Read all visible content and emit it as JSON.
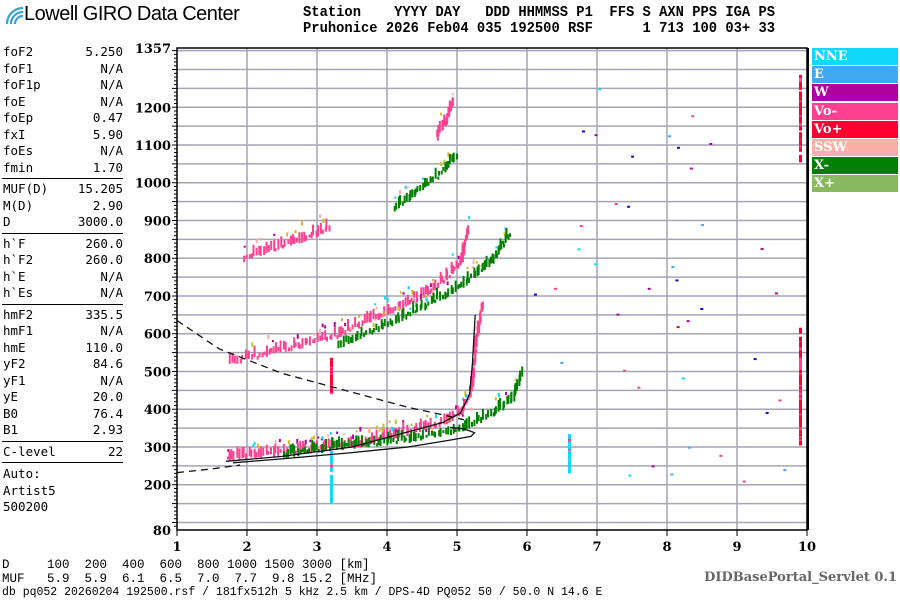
{
  "logo": {
    "text": "Lowell GIRO Data Center",
    "icon": "wifi-signal-icon"
  },
  "header": {
    "line1": "Station    YYYY DAY   DDD HHMMSS P1  FFS S AXN PPS IGA PS",
    "line2": "Pruhonice 2026 Feb04 035 192500 RSF      1 713 100 03+ 33"
  },
  "params": [
    {
      "k": "foF2",
      "v": "5.250"
    },
    {
      "k": "foF1",
      "v": "N/A"
    },
    {
      "k": "foF1p",
      "v": "N/A"
    },
    {
      "k": "foE",
      "v": "N/A"
    },
    {
      "k": "foEp",
      "v": "0.47"
    },
    {
      "k": "fxI",
      "v": "5.90"
    },
    {
      "k": "foEs",
      "v": "N/A"
    },
    {
      "k": "fmin",
      "v": "1.70"
    },
    {
      "k": "MUF(D)",
      "v": "15.205"
    },
    {
      "k": "M(D)",
      "v": "2.90"
    },
    {
      "k": "D",
      "v": "3000.0"
    },
    {
      "k": "h`F",
      "v": "260.0"
    },
    {
      "k": "h`F2",
      "v": "260.0"
    },
    {
      "k": "h`E",
      "v": "N/A"
    },
    {
      "k": "h`Es",
      "v": "N/A"
    },
    {
      "k": "hmF2",
      "v": "335.5"
    },
    {
      "k": "hmF1",
      "v": "N/A"
    },
    {
      "k": "hmE",
      "v": "110.0"
    },
    {
      "k": "yF2",
      "v": "84.6"
    },
    {
      "k": "yF1",
      "v": "N/A"
    },
    {
      "k": "yE",
      "v": "20.0"
    },
    {
      "k": "B0",
      "v": "76.4"
    },
    {
      "k": "B1",
      "v": "2.93"
    },
    {
      "k": "C-level",
      "v": "22"
    }
  ],
  "auto": [
    "Auto:",
    "Artist5",
    "500200"
  ],
  "legend": [
    {
      "label": "NNE",
      "color": "#10d8f8"
    },
    {
      "label": "E",
      "color": "#40a8f0"
    },
    {
      "label": "W",
      "color": "#b000a0"
    },
    {
      "label": "Vo-",
      "color": "#ff4090"
    },
    {
      "label": "Vo+",
      "color": "#ff0030"
    },
    {
      "label": "SSW",
      "color": "#f8b0a8"
    },
    {
      "label": "X-",
      "color": "#008000"
    },
    {
      "label": "X+",
      "color": "#88b860"
    }
  ],
  "footer": {
    "d_row": "D     100  200  400  600  800 1000 1500 3000 [km]",
    "muf_row": "MUF   5.9  5.9  6.1  6.5  7.0  7.7  9.8 15.2 [MHz]",
    "info": "db pq052 20260204 192500.rsf / 181fx512h 5 kHz 2.5 km / DPS-4D PQ052 50 / 50.0 N 14.6 E",
    "servlet": "DIDBasePortal_Servlet 0.1"
  },
  "chart_data": {
    "type": "scatter",
    "xlim": [
      1,
      10
    ],
    "ylim": [
      80,
      1357
    ],
    "xticks": [
      "1",
      "2",
      "3",
      "4",
      "5",
      "6",
      "7",
      "8",
      "9",
      "10"
    ],
    "yticks": [
      "1357",
      "1200",
      "1100",
      "1000",
      "900",
      "800",
      "700",
      "600",
      "500",
      "400",
      "300",
      "200",
      "80"
    ],
    "grid": true,
    "traces": [
      {
        "pol": "Vo-",
        "pts": [
          [
            1.7,
            270
          ],
          [
            2.5,
            285
          ],
          [
            3.5,
            305
          ],
          [
            4.3,
            340
          ],
          [
            4.8,
            365
          ],
          [
            5.05,
            390
          ],
          [
            5.2,
            450
          ],
          [
            5.25,
            560
          ],
          [
            5.35,
            680
          ]
        ]
      },
      {
        "pol": "X-",
        "pts": [
          [
            2.5,
            280
          ],
          [
            3.3,
            300
          ],
          [
            4.3,
            320
          ],
          [
            5.0,
            345
          ],
          [
            5.5,
            385
          ],
          [
            5.8,
            430
          ],
          [
            5.92,
            500
          ]
        ]
      },
      {
        "pol": "Vo-",
        "pts": [
          [
            1.75,
            525
          ],
          [
            2.2,
            545
          ],
          [
            3.2,
            590
          ],
          [
            3.5,
            615
          ],
          [
            4.4,
            690
          ],
          [
            4.8,
            740
          ],
          [
            5.05,
            790
          ],
          [
            5.15,
            880
          ]
        ]
      },
      {
        "pol": "X-",
        "pts": [
          [
            3.3,
            570
          ],
          [
            4.2,
            640
          ],
          [
            5.0,
            720
          ],
          [
            5.5,
            790
          ],
          [
            5.75,
            870
          ]
        ]
      },
      {
        "pol": "Vo-",
        "pts": [
          [
            1.95,
            800
          ],
          [
            2.6,
            840
          ],
          [
            3.2,
            880
          ]
        ]
      },
      {
        "pol": "X-",
        "pts": [
          [
            4.1,
            930
          ],
          [
            4.6,
            1000
          ],
          [
            5.0,
            1070
          ]
        ]
      },
      {
        "pol": "Vo-",
        "pts": [
          [
            4.7,
            1120
          ],
          [
            4.85,
            1170
          ],
          [
            4.95,
            1220
          ]
        ]
      }
    ],
    "columns": [
      {
        "pol": "Vo+",
        "f": 9.9,
        "h": [
          1050,
          1280
        ]
      },
      {
        "pol": "Vo+",
        "f": 9.9,
        "h": [
          300,
          610
        ]
      },
      {
        "pol": "NNE",
        "f": 3.2,
        "h": [
          150,
          285
        ]
      },
      {
        "pol": "Vo+",
        "f": 3.2,
        "h": [
          440,
          530
        ]
      },
      {
        "pol": "NNE",
        "f": 6.6,
        "h": [
          230,
          330
        ]
      }
    ],
    "profile_solid": [
      [
        1.7,
        262
      ],
      [
        2.5,
        275
      ],
      [
        3.5,
        300
      ],
      [
        4.3,
        340
      ],
      [
        4.8,
        365
      ],
      [
        5.05,
        390
      ],
      [
        5.18,
        440
      ],
      [
        5.22,
        520
      ],
      [
        5.26,
        650
      ]
    ],
    "profile_solid_lower": [
      [
        1.8,
        258
      ],
      [
        2.6,
        270
      ],
      [
        3.5,
        285
      ],
      [
        4.3,
        300
      ],
      [
        4.9,
        318
      ],
      [
        5.2,
        328
      ],
      [
        5.25,
        338
      ],
      [
        5.1,
        348
      ],
      [
        4.9,
        352
      ]
    ],
    "dashed_upper": [
      [
        1.0,
        635
      ],
      [
        1.6,
        560
      ],
      [
        2.5,
        495
      ],
      [
        3.5,
        445
      ],
      [
        4.3,
        405
      ],
      [
        4.8,
        385
      ],
      [
        5.1,
        372
      ]
    ],
    "dashed_lower": [
      [
        1.0,
        232
      ],
      [
        1.5,
        242
      ],
      [
        1.9,
        252
      ]
    ]
  }
}
